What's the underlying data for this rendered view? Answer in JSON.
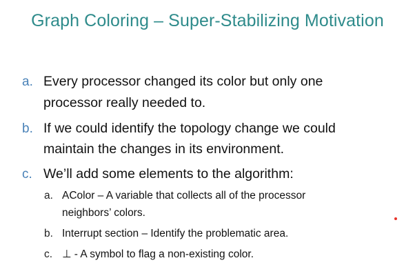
{
  "slide": {
    "title": "Graph Coloring – Super-Stabilizing Motivation",
    "items": [
      {
        "marker": "a.",
        "line1": "Every processor changed its color but only one",
        "line2": "processor really needed to."
      },
      {
        "marker": "b.",
        "line1": "If we could identify the topology change we could",
        "line2": "maintain the changes in its environment."
      },
      {
        "marker": "c.",
        "line1": "We’ll add some elements to the algorithm:"
      }
    ],
    "subitems": [
      {
        "marker": "a.",
        "line1": "AColor – A variable that collects all of the processor",
        "line2": "neighbors’ colors."
      },
      {
        "marker": "b.",
        "line1": "Interrupt section – Identify the problematic area."
      },
      {
        "marker": "c.",
        "line1": "⊥ - A symbol to flag a non-existing color."
      }
    ],
    "colors": {
      "title": "#2e8b8b",
      "marker_level1": "#4a82b8",
      "laser_dot": "#e8332a"
    }
  }
}
